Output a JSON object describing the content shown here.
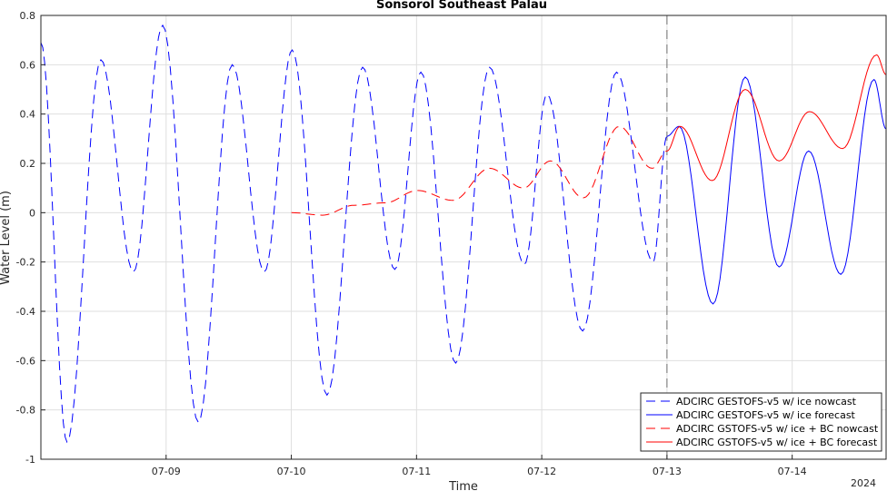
{
  "chart_data": {
    "type": "line",
    "title": "Sonsorol Southeast Palau",
    "xlabel": "Time",
    "ylabel": "Water Level (m)",
    "year_label": "2024",
    "xlim": [
      "2024-07-08T00:00",
      "2024-07-14T18:00"
    ],
    "ylim": [
      -1,
      0.8
    ],
    "yticks": [
      -1,
      -0.8,
      -0.6,
      -0.4,
      -0.2,
      0,
      0.2,
      0.4,
      0.6,
      0.8
    ],
    "ytick_labels": [
      "-1",
      "-0.8",
      "-0.6",
      "-0.4",
      "-0.2",
      "0",
      "0.2",
      "0.4",
      "0.6",
      "0.8"
    ],
    "xticks": [
      "2024-07-09",
      "2024-07-10",
      "2024-07-11",
      "2024-07-12",
      "2024-07-13",
      "2024-07-14"
    ],
    "xtick_labels": [
      "07-09",
      "07-10",
      "07-11",
      "07-12",
      "07-13",
      "07-14"
    ],
    "vertical_marker": "2024-07-13T00:00",
    "legend_position": "bottom-right",
    "grid": true,
    "series": [
      {
        "name": "ADCIRC GESTOFS-v5 w/ ice nowcast",
        "color": "#0000ff",
        "style": "dashed",
        "points": [
          [
            "2024-07-08T00:00",
            0.69
          ],
          [
            "2024-07-08T05:00",
            -0.93
          ],
          [
            "2024-07-08T11:30",
            0.62
          ],
          [
            "2024-07-08T17:45",
            -0.24
          ],
          [
            "2024-07-08T23:20",
            0.76
          ],
          [
            "2024-07-09T06:10",
            -0.85
          ],
          [
            "2024-07-09T12:40",
            0.6
          ],
          [
            "2024-07-09T18:50",
            -0.24
          ],
          [
            "2024-07-10T00:10",
            0.66
          ],
          [
            "2024-07-10T06:50",
            -0.74
          ],
          [
            "2024-07-10T13:40",
            0.59
          ],
          [
            "2024-07-10T19:50",
            -0.23
          ],
          [
            "2024-07-11T00:50",
            0.57
          ],
          [
            "2024-07-11T07:30",
            -0.61
          ],
          [
            "2024-07-11T14:00",
            0.59
          ],
          [
            "2024-07-11T20:40",
            -0.21
          ],
          [
            "2024-07-12T01:00",
            0.48
          ],
          [
            "2024-07-12T07:50",
            -0.48
          ],
          [
            "2024-07-12T14:20",
            0.57
          ],
          [
            "2024-07-12T21:20",
            -0.2
          ],
          [
            "2024-07-13T00:00",
            0.31
          ]
        ]
      },
      {
        "name": "ADCIRC GESTOFS-v5 w/ ice forecast",
        "color": "#0000ff",
        "style": "solid",
        "points": [
          [
            "2024-07-13T00:00",
            0.31
          ],
          [
            "2024-07-13T02:20",
            0.35
          ],
          [
            "2024-07-13T08:50",
            -0.37
          ],
          [
            "2024-07-13T15:00",
            0.55
          ],
          [
            "2024-07-13T21:30",
            -0.22
          ],
          [
            "2024-07-14T03:10",
            0.25
          ],
          [
            "2024-07-14T09:20",
            -0.25
          ],
          [
            "2024-07-14T15:40",
            0.54
          ],
          [
            "2024-07-14T18:00",
            0.34
          ]
        ]
      },
      {
        "name": "ADCIRC GSTOFS-v5 w/ ice + BC nowcast",
        "color": "#ff0000",
        "style": "dashed",
        "points": [
          [
            "2024-07-10T00:00",
            0.0
          ],
          [
            "2024-07-10T06:00",
            -0.01
          ],
          [
            "2024-07-10T12:00",
            0.03
          ],
          [
            "2024-07-10T18:00",
            0.04
          ],
          [
            "2024-07-11T00:10",
            0.09
          ],
          [
            "2024-07-11T07:00",
            0.05
          ],
          [
            "2024-07-11T14:00",
            0.18
          ],
          [
            "2024-07-11T20:30",
            0.1
          ],
          [
            "2024-07-12T01:40",
            0.21
          ],
          [
            "2024-07-12T08:00",
            0.06
          ],
          [
            "2024-07-12T14:50",
            0.35
          ],
          [
            "2024-07-12T21:10",
            0.18
          ],
          [
            "2024-07-13T00:00",
            0.25
          ]
        ]
      },
      {
        "name": "ADCIRC GSTOFS-v5 w/ ice + BC forecast",
        "color": "#ff0000",
        "style": "solid",
        "points": [
          [
            "2024-07-13T00:00",
            0.25
          ],
          [
            "2024-07-13T02:30",
            0.35
          ],
          [
            "2024-07-13T08:40",
            0.13
          ],
          [
            "2024-07-13T15:00",
            0.5
          ],
          [
            "2024-07-13T21:30",
            0.21
          ],
          [
            "2024-07-14T03:20",
            0.41
          ],
          [
            "2024-07-14T09:40",
            0.26
          ],
          [
            "2024-07-14T16:10",
            0.64
          ],
          [
            "2024-07-14T18:00",
            0.56
          ]
        ]
      }
    ]
  }
}
